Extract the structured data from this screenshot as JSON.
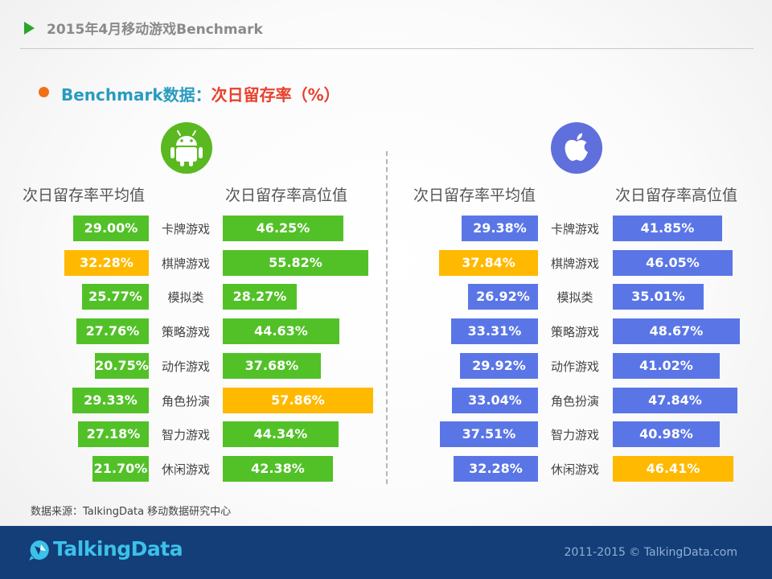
{
  "header": {
    "title": "2015年4月移动游戏Benchmark"
  },
  "subtitle": {
    "part1": "Benchmark数据：",
    "part2": "次日留存率（%）"
  },
  "colors": {
    "android": "#52c128",
    "ios": "#5a76e6",
    "highlight": "#ffb900"
  },
  "chart_data": [
    {
      "type": "bar",
      "title": "",
      "platform": "android-icon",
      "categories": [
        "卡牌游戏",
        "棋牌游戏",
        "模拟类",
        "策略游戏",
        "动作游戏",
        "角色扮演",
        "智力游戏",
        "休闲游戏"
      ],
      "series": [
        {
          "name": "次日留存率平均值",
          "values": [
            29.0,
            32.28,
            25.77,
            27.76,
            20.75,
            29.33,
            27.18,
            21.7
          ],
          "labels": [
            "29.00%",
            "32.28%",
            "25.77%",
            "27.76%",
            "20.75%",
            "29.33%",
            "27.18%",
            "21.70%"
          ],
          "highlight_index": 1
        },
        {
          "name": "次日留存率高位值",
          "values": [
            46.25,
            55.82,
            28.27,
            44.63,
            37.68,
            57.86,
            44.34,
            42.38
          ],
          "labels": [
            "46.25%",
            "55.82%",
            "28.27%",
            "44.63%",
            "37.68%",
            "57.86%",
            "44.34%",
            "42.38%"
          ],
          "highlight_index": 5
        }
      ]
    },
    {
      "type": "bar",
      "title": "",
      "platform": "apple-icon",
      "categories": [
        "卡牌游戏",
        "棋牌游戏",
        "模拟类",
        "策略游戏",
        "动作游戏",
        "角色扮演",
        "智力游戏",
        "休闲游戏"
      ],
      "series": [
        {
          "name": "次日留存率平均值",
          "values": [
            29.38,
            37.84,
            26.92,
            33.31,
            29.92,
            33.04,
            37.51,
            32.28
          ],
          "labels": [
            "29.38%",
            "37.84%",
            "26.92%",
            "33.31%",
            "29.92%",
            "33.04%",
            "37.51%",
            "32.28%"
          ],
          "highlight_index": 1
        },
        {
          "name": "次日留存率高位值",
          "values": [
            41.85,
            46.05,
            35.01,
            48.67,
            41.02,
            47.84,
            40.98,
            46.41
          ],
          "labels": [
            "41.85%",
            "46.05%",
            "35.01%",
            "48.67%",
            "41.02%",
            "47.84%",
            "40.98%",
            "46.41%"
          ],
          "highlight_index": 7
        }
      ]
    }
  ],
  "source": "数据来源：TalkingData 移动数据研究中心",
  "footer": {
    "brand": "TalkingData",
    "copyright": "2011-2015 © TalkingData.com"
  }
}
